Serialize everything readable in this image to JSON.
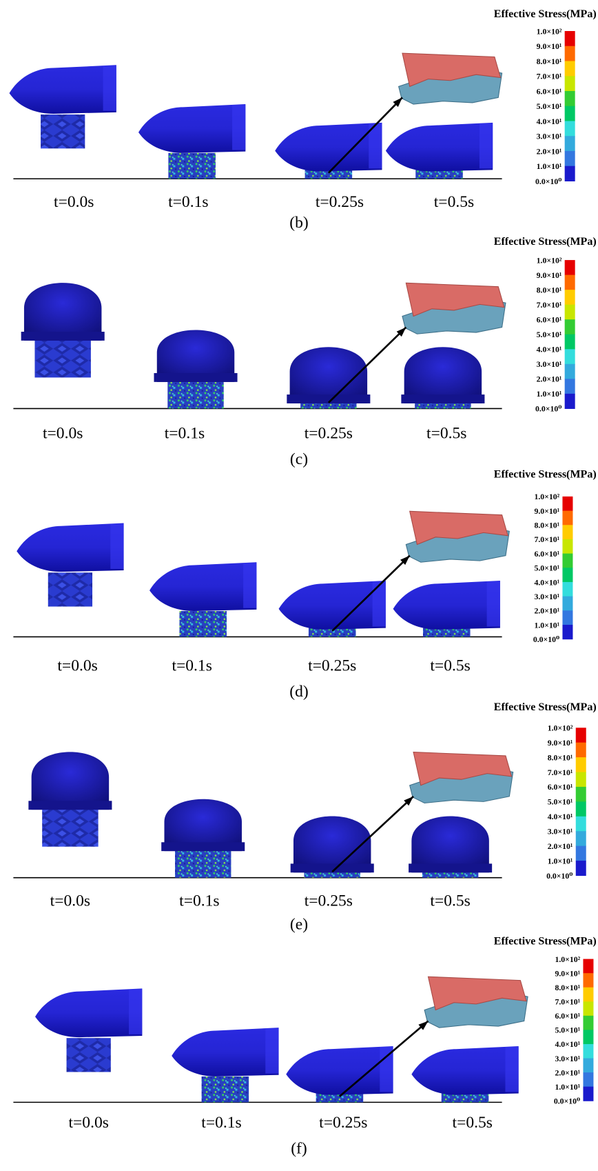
{
  "panels": [
    {
      "label": "(b)",
      "legend": {
        "title": "Effective Stress(MPa)",
        "labels": [
          "1.0×10²",
          "9.0×10¹",
          "8.0×10¹",
          "7.0×10¹",
          "6.0×10¹",
          "5.0×10¹",
          "4.0×10¹",
          "3.0×10¹",
          "2.0×10¹",
          "1.0×10¹",
          "0.0×10⁰"
        ]
      },
      "times": [
        "t=0.0s",
        "t=0.1s",
        "t=0.25s",
        "t=0.5s"
      ]
    },
    {
      "label": "(c)",
      "legend": {
        "title": "Effective Stress(MPa)",
        "labels": [
          "1.0×10²",
          "9.0×10¹",
          "8.0×10¹",
          "7.0×10¹",
          "6.0×10¹",
          "5.0×10¹",
          "4.0×10¹",
          "3.0×10¹",
          "2.0×10¹",
          "1.0×10¹",
          "0.0×10⁰"
        ]
      },
      "times": [
        "t=0.0s",
        "t=0.1s",
        "t=0.25s",
        "t=0.5s"
      ]
    },
    {
      "label": "(d)",
      "legend": {
        "title": "Effective Stress(MPa)",
        "labels": [
          "1.0×10²",
          "9.0×10¹",
          "8.0×10¹",
          "7.0×10¹",
          "6.0×10¹",
          "5.0×10¹",
          "4.0×10¹",
          "3.0×10¹",
          "2.0×10¹",
          "1.0×10¹",
          "0.0×10⁰"
        ]
      },
      "times": [
        "t=0.0s",
        "t=0.1s",
        "t=0.25s",
        "t=0.5s"
      ]
    },
    {
      "label": "(e)",
      "legend": {
        "title": "Effective Stress(MPa)",
        "labels": [
          "1.0×10²",
          "9.0×10¹",
          "8.0×10¹",
          "7.0×10¹",
          "6.0×10¹",
          "5.0×10¹",
          "4.0×10¹",
          "3.0×10¹",
          "2.0×10¹",
          "1.0×10¹",
          "0.0×10⁰"
        ]
      },
      "times": [
        "t=0.0s",
        "t=0.1s",
        "t=0.25s",
        "t=0.5s"
      ]
    },
    {
      "label": "(f)",
      "legend": {
        "title": "Effective Stress(MPa)",
        "labels": [
          "1.0×10²",
          "9.0×10¹",
          "8.0×10¹",
          "7.0×10¹",
          "6.0×10¹",
          "5.0×10¹",
          "4.0×10¹",
          "3.0×10¹",
          "2.0×10¹",
          "1.0×10¹",
          "0.0×10⁰"
        ]
      },
      "times": [
        "t=0.0s",
        "t=0.1s",
        "t=0.25s",
        "t=0.5s"
      ]
    }
  ]
}
